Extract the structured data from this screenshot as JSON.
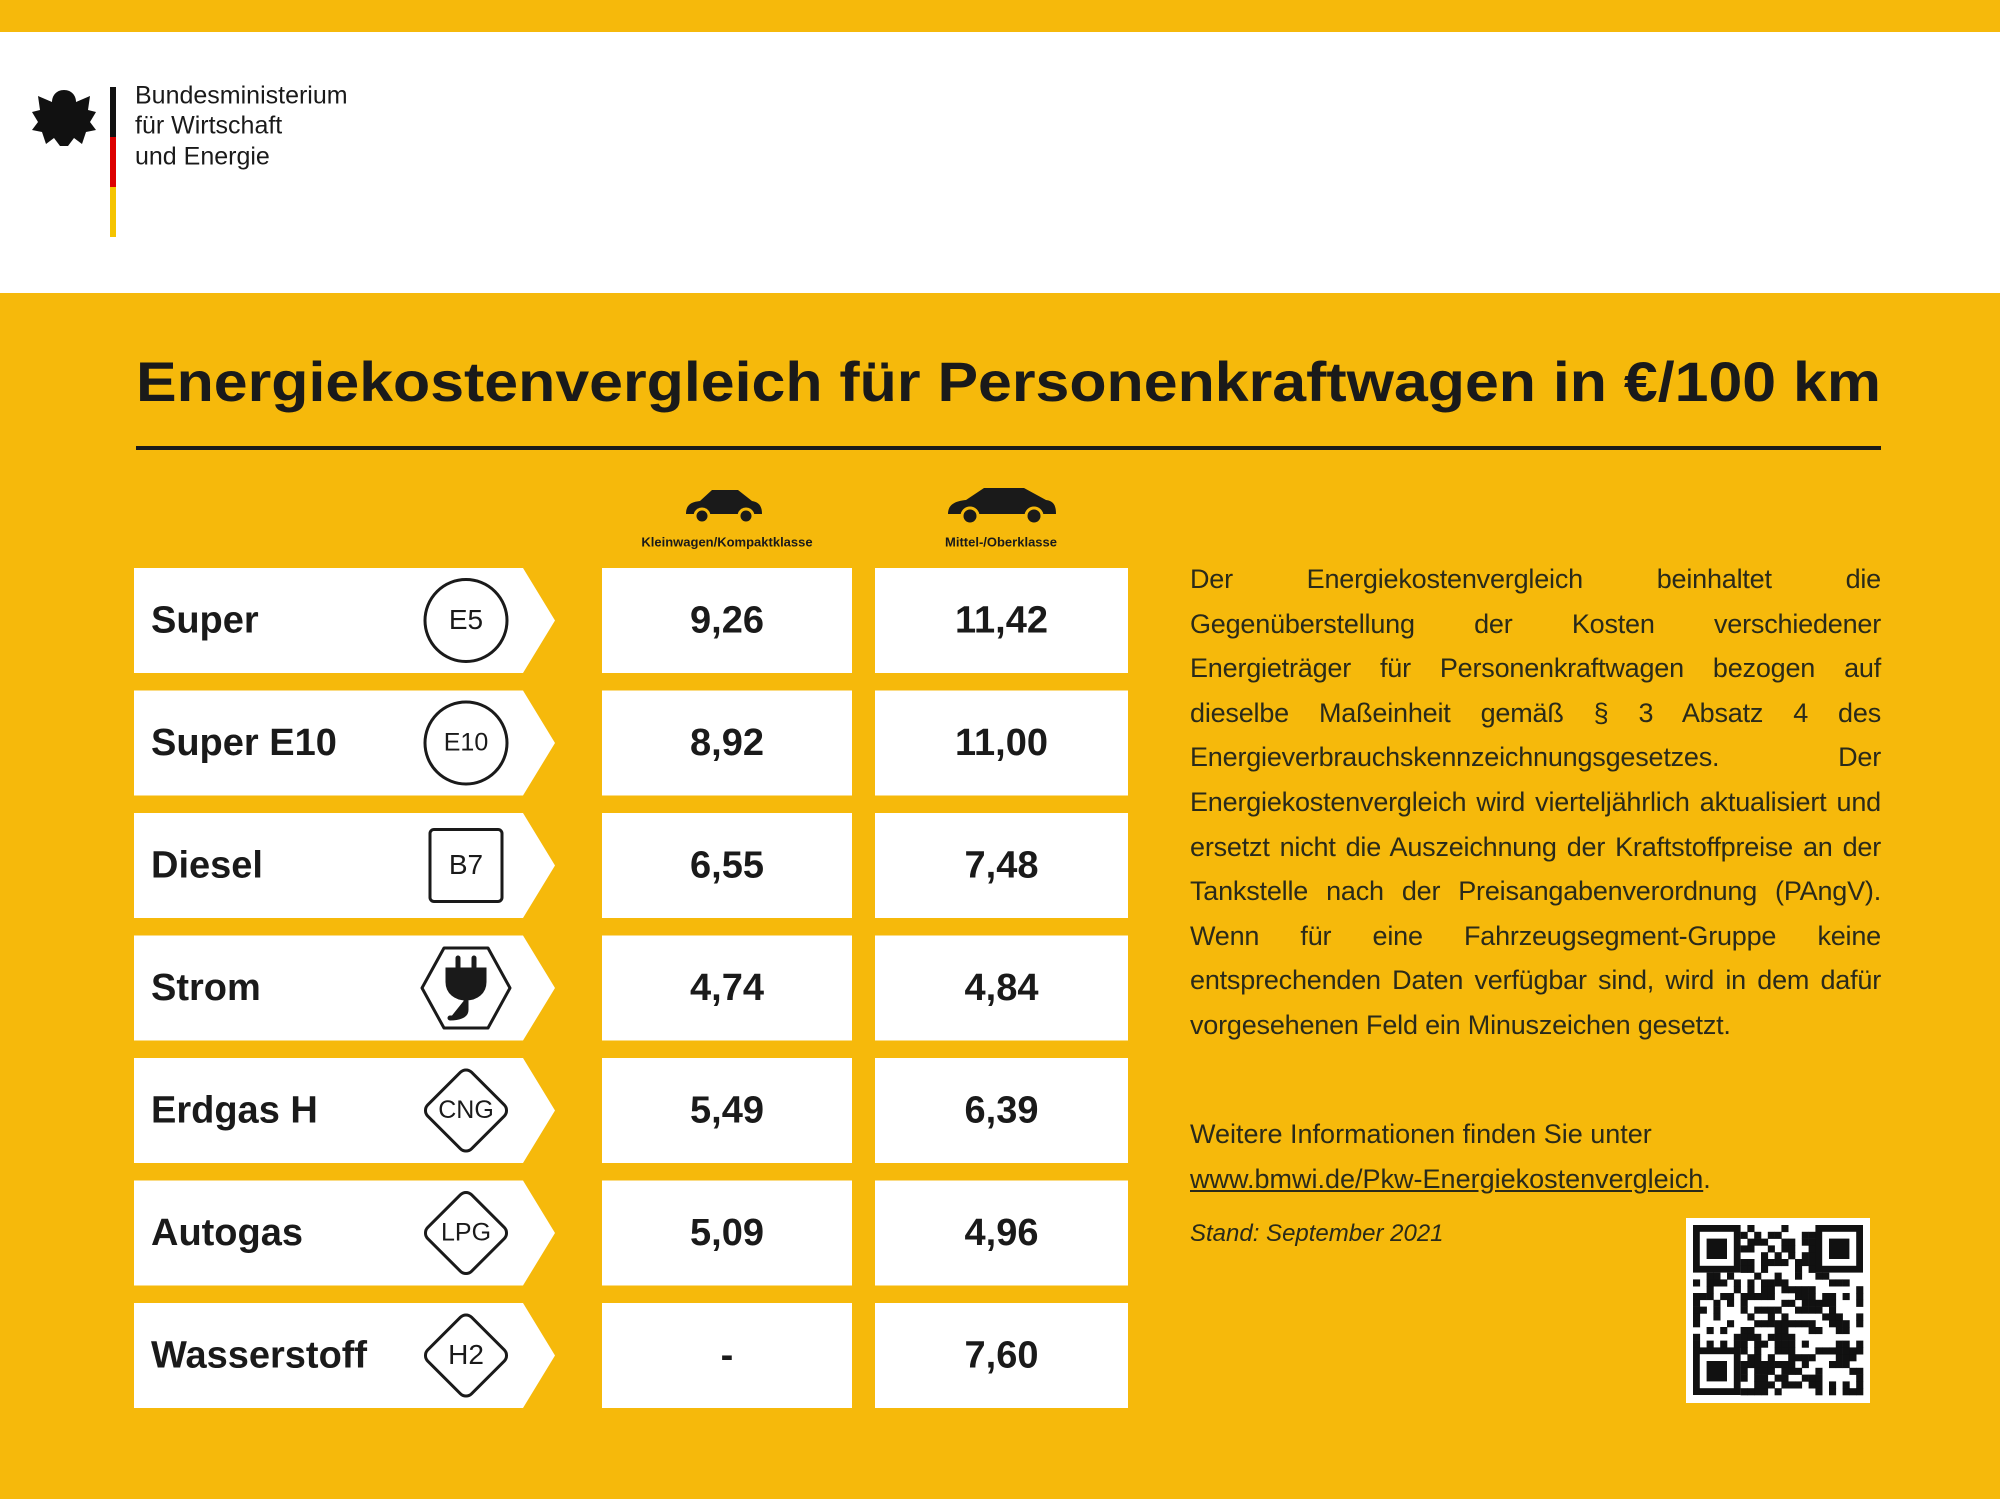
{
  "header": {
    "ministry": [
      "Bundesministerium",
      "für Wirtschaft",
      "und Energie"
    ]
  },
  "title": "Energiekostenvergleich für Personenkraftwagen in €/100 km",
  "table": {
    "columns": [
      "Kleinwagen/Kompaktklasse",
      "Mittel-/Oberklasse"
    ],
    "rows": [
      {
        "name": "Super",
        "badge": "E5",
        "values": [
          "9,26",
          "11,42"
        ]
      },
      {
        "name": "Super E10",
        "badge": "E10",
        "values": [
          "8,92",
          "11,00"
        ]
      },
      {
        "name": "Diesel",
        "badge": "B7",
        "values": [
          "6,55",
          "7,48"
        ]
      },
      {
        "name": "Strom",
        "values": [
          "4,74",
          "4,84"
        ]
      },
      {
        "name": "Erdgas H",
        "badge": "CNG",
        "values": [
          "5,49",
          "6,39"
        ]
      },
      {
        "name": "Autogas",
        "badge": "LPG",
        "values": [
          "5,09",
          "4,96"
        ]
      },
      {
        "name": "Wasserstoff",
        "badge": "H2",
        "values": [
          "-",
          "7,60"
        ]
      }
    ]
  },
  "info": {
    "text": "Der Energiekostenvergleich beinhaltet die Gegenüberstellung der Kosten verschiedener Energieträger für Personenkraftwagen bezogen auf dieselbe Maßeinheit gemäß § 3 Absatz 4 des Energieverbrauchskennzeichnungsgesetzes. Der Energiekostenvergleich wird vierteljährlich aktualisiert und ersetzt nicht die Auszeichnung der Kraftstoffpreise an der Tankstelle nach der Preisangabenverordnung (PAngV). Wenn für eine Fahrzeugsegment-Gruppe keine entsprechenden Daten verfügbar sind, wird in dem dafür vorgesehenen Feld ein Minuszeichen gesetzt.",
    "more": "Weitere Informationen finden Sie unter",
    "link": "www.bmwi.de/Pkw-Energiekostenvergleich",
    "link_end": ".",
    "stand": "Stand: September 2021"
  }
}
